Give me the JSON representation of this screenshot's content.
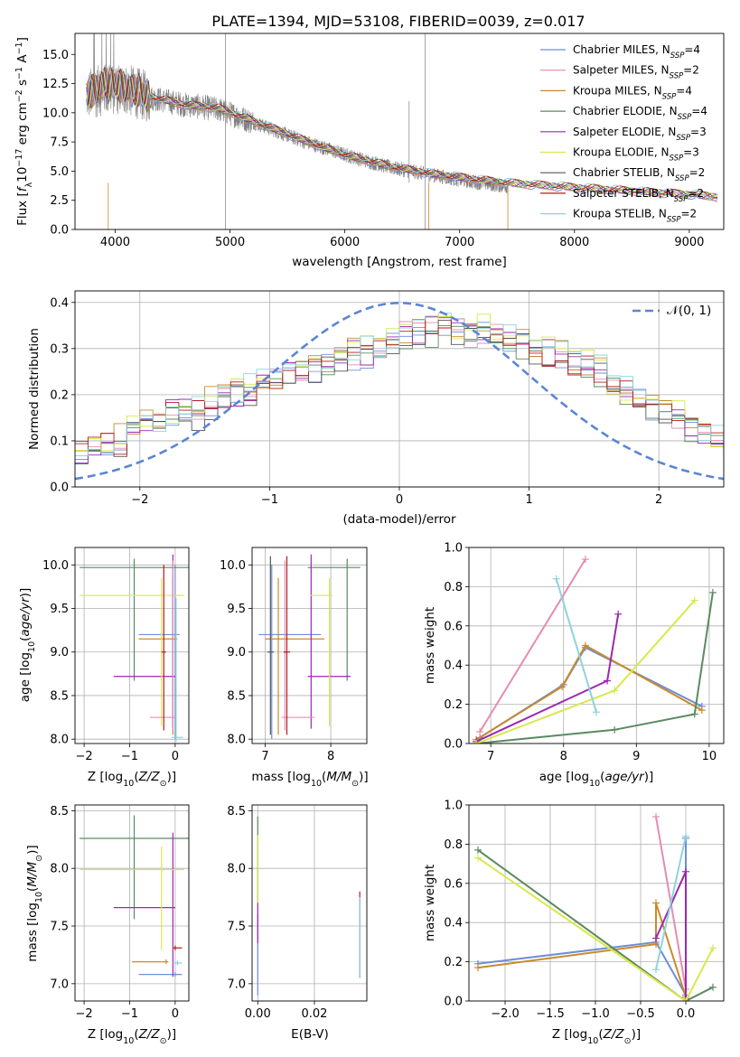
{
  "figure": {
    "title": "PLATE=1394, MJD=53108, FIBERID=0039, z=0.017"
  },
  "legend_entries": [
    {
      "label": "Chabrier MILES, N",
      "sub": "SSP",
      "suffix": "=4",
      "color": "#6c8fd6"
    },
    {
      "label": "Salpeter MILES, N",
      "sub": "SSP",
      "suffix": "=2",
      "color": "#e58cb2"
    },
    {
      "label": "Kroupa MILES, N",
      "sub": "SSP",
      "suffix": "=4",
      "color": "#c98a2c"
    },
    {
      "label": "Chabrier ELODIE, N",
      "sub": "SSP",
      "suffix": "=4",
      "color": "#5a8a5e"
    },
    {
      "label": "Salpeter ELODIE, N",
      "sub": "SSP",
      "suffix": "=3",
      "color": "#9a28b0"
    },
    {
      "label": "Kroupa ELODIE, N",
      "sub": "SSP",
      "suffix": "=3",
      "color": "#d8e84a"
    },
    {
      "label": "Chabrier STELIB, N",
      "sub": "SSP",
      "suffix": "=2",
      "color": "#555555"
    },
    {
      "label": "Salpeter STELIB, N",
      "sub": "SSP",
      "suffix": "=2",
      "color": "#b21c1c"
    },
    {
      "label": "Kroupa STELIB, N",
      "sub": "SSP",
      "suffix": "=2",
      "color": "#8fd3dc"
    }
  ],
  "chart_data": [
    {
      "id": "spectrum",
      "type": "line",
      "title": "PLATE=1394, MJD=53108, FIBERID=0039, z=0.017",
      "xlabel": "wavelength [Angstrom, rest frame]",
      "ylabel_parts": [
        "Flux [",
        "f",
        "λ",
        "10",
        "−17",
        " erg cm",
        "−2",
        " s",
        "−1",
        " A",
        "−1",
        "]"
      ],
      "xlim": [
        3650,
        9300
      ],
      "ylim": [
        0,
        16.8
      ],
      "xticks": [
        4000,
        5000,
        6000,
        7000,
        8000,
        9000
      ],
      "yticks": [
        "0.0",
        "2.5",
        "5.0",
        "7.5",
        "10.0",
        "12.5",
        "15.0"
      ],
      "ytick_values": [
        0,
        2.5,
        5,
        7.5,
        10,
        12.5,
        15
      ],
      "data_color": "#808080",
      "data_range": [
        3750,
        7420
      ],
      "model_range": [
        3750,
        9250
      ],
      "data_envelope": {
        "x": [
          3750,
          3900,
          4100,
          4300,
          4600,
          4900,
          5200,
          5600,
          6000,
          6400,
          6800,
          7100,
          7420
        ],
        "y": [
          11.5,
          12.0,
          12.0,
          11.3,
          10.7,
          10.3,
          9.2,
          7.7,
          6.4,
          5.3,
          4.6,
          4.1,
          3.7
        ]
      },
      "model_envelope": {
        "x": [
          3750,
          3900,
          4100,
          4300,
          4600,
          4900,
          5200,
          5600,
          6000,
          6400,
          6800,
          7400,
          8000,
          8500,
          9000,
          9250
        ],
        "y": [
          11.5,
          12.6,
          12.2,
          11.4,
          10.7,
          10.4,
          9.3,
          7.8,
          6.4,
          5.4,
          4.7,
          4.0,
          3.6,
          3.3,
          3.0,
          2.8
        ]
      },
      "legend_position": "upper right"
    },
    {
      "id": "residuals",
      "type": "histogram",
      "xlabel": "(data-model)/error",
      "ylabel": "Normed distribution",
      "xlim": [
        -2.5,
        2.5
      ],
      "ylim": [
        0,
        0.425
      ],
      "xticks": [
        -2,
        -1,
        0,
        1,
        2
      ],
      "xtick_labels": [
        "−2",
        "−1",
        "0",
        "1",
        "2"
      ],
      "yticks": [
        0,
        0.1,
        0.2,
        0.3,
        0.4
      ],
      "ytick_labels": [
        "0.0",
        "0.1",
        "0.2",
        "0.3",
        "0.4"
      ],
      "bin_width": 0.1,
      "bin_start": -2.5,
      "base_profile": [
        0.08,
        0.09,
        0.09,
        0.1,
        0.12,
        0.13,
        0.14,
        0.16,
        0.17,
        0.16,
        0.18,
        0.19,
        0.2,
        0.21,
        0.22,
        0.23,
        0.25,
        0.26,
        0.25,
        0.27,
        0.28,
        0.29,
        0.29,
        0.3,
        0.32,
        0.33,
        0.34,
        0.34,
        0.35,
        0.34,
        0.33,
        0.34,
        0.33,
        0.32,
        0.31,
        0.3,
        0.29,
        0.28,
        0.27,
        0.26,
        0.25,
        0.22,
        0.21,
        0.2,
        0.18,
        0.17,
        0.15,
        0.13,
        0.12,
        0.1,
        0.09,
        0.08,
        0.08,
        0.07,
        0.07,
        0.06,
        0.06,
        0.05,
        0.05,
        0.04
      ],
      "reference_curve": {
        "label": "𝒩(0, 1)",
        "mean": 0,
        "sd": 1,
        "color": "#5b85d6"
      },
      "legend_position": "upper right"
    },
    {
      "id": "age-vs-Z",
      "type": "errorbar",
      "xlabel_parts": [
        "Z [log",
        "10",
        "(",
        "Z/Z",
        "⊙",
        ")]"
      ],
      "ylabel_parts": [
        "age  [log",
        "10",
        "(",
        "age/yr",
        ")]"
      ],
      "xlim": [
        -2.2,
        0.3
      ],
      "ylim": [
        7.95,
        10.2
      ],
      "xticks": [
        -2,
        -1,
        0
      ],
      "xtick_labels": [
        "−2",
        "−1",
        "0"
      ],
      "yticks": [
        8.0,
        8.5,
        9.0,
        9.5,
        10.0
      ],
      "ytick_labels": [
        "8.0",
        "8.5",
        "9.0",
        "9.5",
        "10.0"
      ],
      "points": [
        {
          "series": 0,
          "x": 0.0,
          "y": 9.2,
          "xerr": [
            0.8,
            0.1
          ],
          "yerr": [
            1.2,
            0.8
          ]
        },
        {
          "series": 2,
          "x": -0.05,
          "y": 9.15,
          "xerr": [
            0.75,
            0.1
          ],
          "yerr": [
            1.1,
            0.7
          ]
        },
        {
          "series": 3,
          "x": -0.9,
          "y": 9.97,
          "xerr": [
            1.2,
            1.2
          ],
          "yerr": [
            1.3,
            0.1
          ]
        },
        {
          "series": 4,
          "x": -0.05,
          "y": 8.72,
          "xerr": [
            1.3,
            0.05
          ],
          "yerr": [
            0.6,
            1.4
          ]
        },
        {
          "series": 5,
          "x": -0.3,
          "y": 9.65,
          "xerr": [
            1.8,
            0.5
          ],
          "yerr": [
            1.5,
            0.2
          ]
        },
        {
          "series": 1,
          "x": -0.05,
          "y": 8.25,
          "xerr": [
            0.5,
            0.05
          ],
          "yerr": [
            0.15,
            1.8
          ]
        },
        {
          "series": 8,
          "x": 0.02,
          "y": 8.02,
          "xerr": [
            0.1,
            0.15
          ],
          "yerr": [
            0.05,
            1.6
          ]
        },
        {
          "series": 7,
          "x": -0.25,
          "y": 9.0,
          "xerr": [
            0.05,
            0.05
          ],
          "yerr": [
            0.9,
            1.0
          ]
        }
      ]
    },
    {
      "id": "age-vs-mass",
      "type": "errorbar",
      "xlabel_parts": [
        "mass [log",
        "10",
        "(",
        "M/M",
        "⊙",
        ")]"
      ],
      "xlim": [
        6.8,
        8.55
      ],
      "ylim": [
        7.95,
        10.2
      ],
      "xticks": [
        7,
        8
      ],
      "xtick_labels": [
        "7",
        "8"
      ],
      "yticks": [
        8.0,
        8.5,
        9.0,
        9.5,
        10.0
      ],
      "ytick_labels": [
        "8.0",
        "8.5",
        "9.0",
        "9.5",
        "10.0"
      ],
      "points": [
        {
          "series": 0,
          "x": 7.1,
          "y": 9.2,
          "xerr": [
            0.2,
            0.75
          ],
          "yerr": [
            1.2,
            0.8
          ]
        },
        {
          "series": 2,
          "x": 7.2,
          "y": 9.15,
          "xerr": [
            0.2,
            0.7
          ],
          "yerr": [
            1.1,
            0.7
          ]
        },
        {
          "series": 3,
          "x": 8.25,
          "y": 9.97,
          "xerr": [
            0.6,
            0.2
          ],
          "yerr": [
            1.3,
            0.1
          ]
        },
        {
          "series": 4,
          "x": 7.7,
          "y": 8.72,
          "xerr": [
            0.05,
            0.6
          ],
          "yerr": [
            0.6,
            1.4
          ]
        },
        {
          "series": 5,
          "x": 7.98,
          "y": 9.65,
          "xerr": [
            0.3,
            0.05
          ],
          "yerr": [
            1.5,
            0.2
          ]
        },
        {
          "series": 1,
          "x": 7.3,
          "y": 8.25,
          "xerr": [
            0.05,
            0.45
          ],
          "yerr": [
            0.15,
            1.8
          ]
        },
        {
          "series": 6,
          "x": 7.08,
          "y": 9.0,
          "xerr": [
            0.05,
            0.05
          ],
          "yerr": [
            0.95,
            1.1
          ]
        },
        {
          "series": 7,
          "x": 7.33,
          "y": 9.0,
          "xerr": [
            0.05,
            0.05
          ],
          "yerr": [
            0.95,
            1.1
          ]
        }
      ]
    },
    {
      "id": "weight-vs-age",
      "type": "line",
      "xlabel_parts": [
        "age  [log",
        "10",
        "(",
        "age/yr",
        ")]"
      ],
      "ylabel": "mass weight",
      "xlim": [
        6.7,
        10.2
      ],
      "ylim": [
        0,
        1.0
      ],
      "xticks": [
        7,
        8,
        9,
        10
      ],
      "xtick_labels": [
        "7",
        "8",
        "9",
        "10"
      ],
      "yticks": [
        0.0,
        0.2,
        0.4,
        0.6,
        0.8,
        1.0
      ],
      "ytick_labels": [
        "0.0",
        "0.2",
        "0.4",
        "0.6",
        "0.8",
        "1.0"
      ],
      "series": [
        {
          "series": 0,
          "x": [
            6.85,
            8.0,
            8.3,
            9.9
          ],
          "y": [
            0.03,
            0.3,
            0.49,
            0.19
          ]
        },
        {
          "series": 1,
          "x": [
            6.85,
            8.3
          ],
          "y": [
            0.06,
            0.94
          ]
        },
        {
          "series": 2,
          "x": [
            6.8,
            7.98,
            8.3,
            9.9
          ],
          "y": [
            0.02,
            0.29,
            0.5,
            0.17
          ]
        },
        {
          "series": 3,
          "x": [
            6.8,
            8.7,
            9.8,
            10.05
          ],
          "y": [
            0.0,
            0.07,
            0.15,
            0.77
          ]
        },
        {
          "series": 4,
          "x": [
            6.8,
            8.6,
            8.75
          ],
          "y": [
            0.01,
            0.32,
            0.66
          ]
        },
        {
          "series": 5,
          "x": [
            6.8,
            8.7,
            9.8
          ],
          "y": [
            0.0,
            0.27,
            0.73
          ]
        },
        {
          "series": 8,
          "x": [
            7.9,
            8.45
          ],
          "y": [
            0.84,
            0.16
          ]
        }
      ]
    },
    {
      "id": "mass-vs-Z",
      "type": "errorbar",
      "xlabel_parts": [
        "Z [log",
        "10",
        "(",
        "Z/Z",
        "⊙",
        ")]"
      ],
      "ylabel_parts": [
        "mass [log",
        "10",
        "(",
        "M/M",
        "⊙",
        ")]"
      ],
      "xlim": [
        -2.2,
        0.3
      ],
      "ylim": [
        6.85,
        8.55
      ],
      "xticks": [
        -2,
        -1,
        0
      ],
      "xtick_labels": [
        "−2",
        "−1",
        "0"
      ],
      "yticks": [
        7.0,
        7.5,
        8.0,
        8.5
      ],
      "ytick_labels": [
        "7.0",
        "7.5",
        "8.0",
        "8.5"
      ],
      "points": [
        {
          "series": 0,
          "x": 0.0,
          "y": 7.08,
          "xerr": [
            0.8,
            0.15
          ],
          "yerr": [
            0.02,
            0.02
          ]
        },
        {
          "series": 2,
          "x": -0.2,
          "y": 7.19,
          "xerr": [
            0.75,
            0.05
          ],
          "yerr": [
            0.02,
            0.02
          ]
        },
        {
          "series": 3,
          "x": -0.9,
          "y": 8.26,
          "xerr": [
            1.2,
            1.2
          ],
          "yerr": [
            0.7,
            0.2
          ]
        },
        {
          "series": 4,
          "x": -0.05,
          "y": 7.66,
          "xerr": [
            1.3,
            0.05
          ],
          "yerr": [
            0.6,
            0.65
          ]
        },
        {
          "series": 5,
          "x": -0.3,
          "y": 7.99,
          "xerr": [
            1.8,
            0.5
          ],
          "yerr": [
            0.7,
            0.2
          ]
        },
        {
          "series": 7,
          "x": 0.0,
          "y": 7.31,
          "xerr": [
            0.05,
            0.15
          ],
          "yerr": [
            0.02,
            0.02
          ]
        },
        {
          "series": 8,
          "x": 0.05,
          "y": 7.18,
          "xerr": [
            0.1,
            0.1
          ],
          "yerr": [
            0.02,
            0.02
          ]
        }
      ]
    },
    {
      "id": "mass-vs-ebv",
      "type": "errorbar",
      "xlabel": "E(B-V)",
      "xlim": [
        -0.002,
        0.0385
      ],
      "ylim": [
        6.85,
        8.55
      ],
      "xticks": [
        0.0,
        0.02
      ],
      "xtick_labels": [
        "0.00",
        "0.02"
      ],
      "yticks": [
        7.0,
        7.5,
        8.0,
        8.5
      ],
      "ytick_labels": [
        "7.0",
        "7.5",
        "8.0",
        "8.5"
      ],
      "points": [
        {
          "series": 3,
          "x": 0.0,
          "y": 8.0,
          "xerr": [
            0.0,
            0.0
          ],
          "yerr": [
            0.3,
            0.45
          ]
        },
        {
          "series": 5,
          "x": 0.0,
          "y": 7.99,
          "xerr": [
            0.0,
            0.0
          ],
          "yerr": [
            0.6,
            0.3
          ]
        },
        {
          "series": 0,
          "x": 0.0,
          "y": 7.3,
          "xerr": [
            0.0,
            0.0
          ],
          "yerr": [
            0.4,
            0.3
          ]
        },
        {
          "series": 4,
          "x": 0.0,
          "y": 7.6,
          "xerr": [
            0.0,
            0.0
          ],
          "yerr": [
            0.25,
            0.1
          ]
        },
        {
          "series": 7,
          "x": 0.036,
          "y": 7.45,
          "xerr": [
            0.0,
            0.0
          ],
          "yerr": [
            0.4,
            0.35
          ]
        },
        {
          "series": 8,
          "x": 0.036,
          "y": 7.4,
          "xerr": [
            0.0,
            0.0
          ],
          "yerr": [
            0.35,
            0.35
          ]
        }
      ]
    },
    {
      "id": "weight-vs-Z",
      "type": "line",
      "xlabel_parts": [
        "Z [log",
        "10",
        "(",
        "Z/Z",
        "⊙",
        ")]"
      ],
      "ylabel": "mass weight",
      "xlim": [
        -2.4,
        0.42
      ],
      "ylim": [
        0,
        1.0
      ],
      "xticks": [
        -2.0,
        -1.5,
        -1.0,
        -0.5,
        0.0
      ],
      "xtick_labels": [
        "−2.0",
        "−1.5",
        "−1.0",
        "−0.5",
        "0.0"
      ],
      "yticks": [
        0.0,
        0.2,
        0.4,
        0.6,
        0.8,
        1.0
      ],
      "ytick_labels": [
        "0.0",
        "0.2",
        "0.4",
        "0.6",
        "0.8",
        "1.0"
      ],
      "series": [
        {
          "series": 0,
          "x": [
            -2.3,
            -0.33,
            0.0,
            0.0
          ],
          "y": [
            0.19,
            0.3,
            0.03,
            0.83
          ]
        },
        {
          "series": 1,
          "x": [
            -0.33,
            0.0
          ],
          "y": [
            0.94,
            0.06
          ]
        },
        {
          "series": 2,
          "x": [
            -2.3,
            -0.33,
            -0.33,
            0.0
          ],
          "y": [
            0.17,
            0.29,
            0.5,
            0.02
          ]
        },
        {
          "series": 3,
          "x": [
            -2.3,
            0.0,
            0.3
          ],
          "y": [
            0.77,
            0.0,
            0.07
          ]
        },
        {
          "series": 4,
          "x": [
            -0.33,
            0.0,
            0.0
          ],
          "y": [
            0.32,
            0.66,
            0.01
          ]
        },
        {
          "series": 5,
          "x": [
            -2.3,
            0.0,
            0.3
          ],
          "y": [
            0.73,
            0.0,
            0.27
          ]
        },
        {
          "series": 8,
          "x": [
            -0.33,
            0.0
          ],
          "y": [
            0.16,
            0.84
          ]
        }
      ]
    }
  ]
}
